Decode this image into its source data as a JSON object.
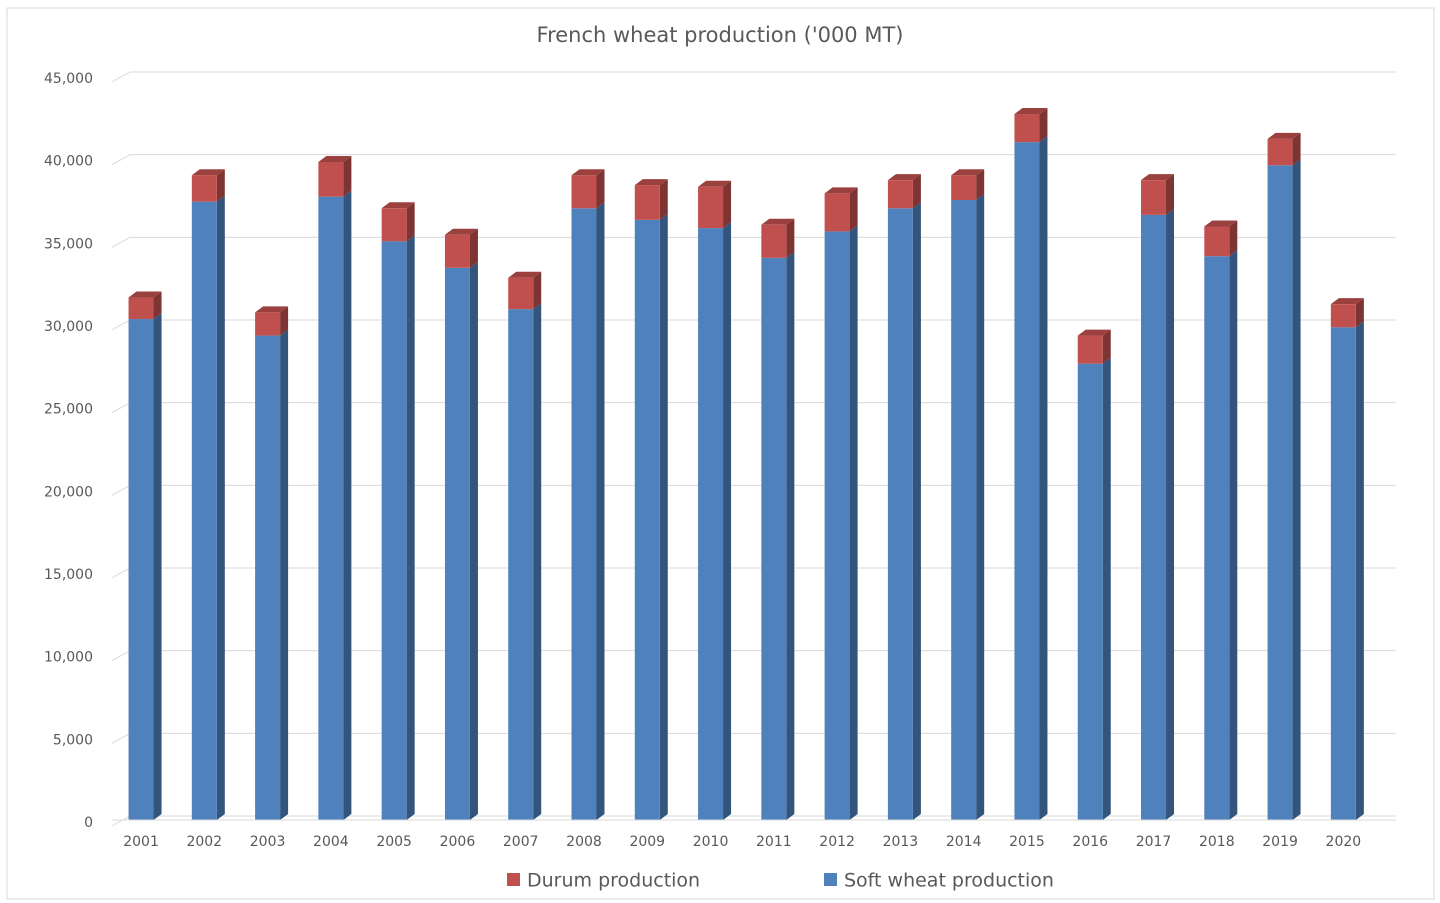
{
  "chart_data": {
    "type": "bar",
    "stacked": true,
    "three_d": true,
    "title": "French wheat production ('000 MT)",
    "categories": [
      "2001",
      "2002",
      "2003",
      "2004",
      "2005",
      "2006",
      "2007",
      "2008",
      "2009",
      "2010",
      "2011",
      "2012",
      "2013",
      "2014",
      "2015",
      "2016",
      "2017",
      "2018",
      "2019",
      "2020"
    ],
    "series": [
      {
        "name": "Durum production",
        "color": "#c0504d",
        "values": [
          1300,
          1600,
          1400,
          2100,
          2000,
          2000,
          1900,
          2000,
          2100,
          2500,
          2000,
          2300,
          1700,
          1500,
          1700,
          1700,
          2100,
          1800,
          1600,
          1400
        ]
      },
      {
        "name": "Soft wheat production",
        "color": "#4f81bd",
        "values": [
          30300,
          37400,
          29300,
          37700,
          35000,
          33400,
          30900,
          37000,
          36300,
          35800,
          34000,
          35600,
          37000,
          37500,
          41000,
          27600,
          36600,
          34100,
          39600,
          29800
        ]
      }
    ],
    "ylim": [
      0,
      45000
    ],
    "yticks": [
      0,
      {
        "value": 5000,
        "label": "5,000"
      },
      {
        "value": 10000,
        "label": "10,000"
      },
      {
        "value": 15000,
        "label": "15,000"
      },
      {
        "value": 20000,
        "label": "20,000"
      },
      {
        "value": 25000,
        "label": "25,000"
      },
      {
        "value": 30000,
        "label": "30,000"
      },
      {
        "value": 35000,
        "label": "35,000"
      },
      {
        "value": 40000,
        "label": "40,000"
      },
      {
        "value": 45000,
        "label": "45,000"
      }
    ],
    "grid": true,
    "legend": "bottom"
  }
}
